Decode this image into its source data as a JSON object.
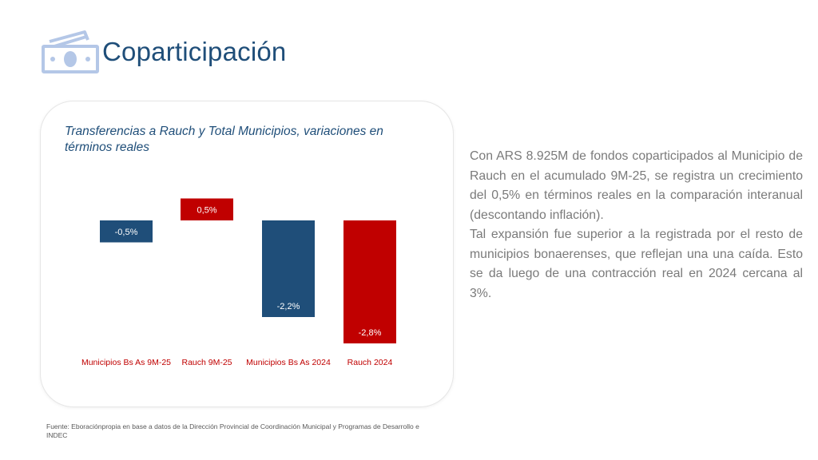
{
  "header": {
    "title": "Coparticipación",
    "icon": "money-bill-icon"
  },
  "chart_data": {
    "type": "bar",
    "title": "Transferencias a Rauch y Total Municipios, variaciones en términos reales",
    "categories": [
      "Municipios Bs As 9M-25",
      "Rauch 9M-25",
      "Municipios Bs As 2024",
      "Rauch 2024"
    ],
    "values": [
      -0.5,
      0.5,
      -2.2,
      -2.8
    ],
    "data_labels": [
      "-0,5%",
      "0,5%",
      "-2,2%",
      "-2,8%"
    ],
    "bar_colors": [
      "#1f4e79",
      "#c00000",
      "#1f4e79",
      "#c00000"
    ],
    "category_label_color": "#c00000",
    "unit": "%",
    "xlabel": "",
    "ylabel": "",
    "grid": false
  },
  "description": {
    "paragraph1": "Con ARS 8.925M de fondos coparticipados al Municipio de Rauch en el acumulado 9M-25, se registra un crecimiento del 0,5% en términos reales en la comparación interanual (descontando inflación).",
    "paragraph2": "Tal expansión fue superior a la registrada por el resto de municipios bonaerenses, que  reflejan una una caída. Esto se da luego de una contracción real en 2024 cercana al 3%."
  },
  "footer": {
    "source": "Fuente: Eboraciónpropia en base a datos de la Dirección Provincial de Coordinación Municipal y Programas de Desarrollo e INDEC"
  }
}
